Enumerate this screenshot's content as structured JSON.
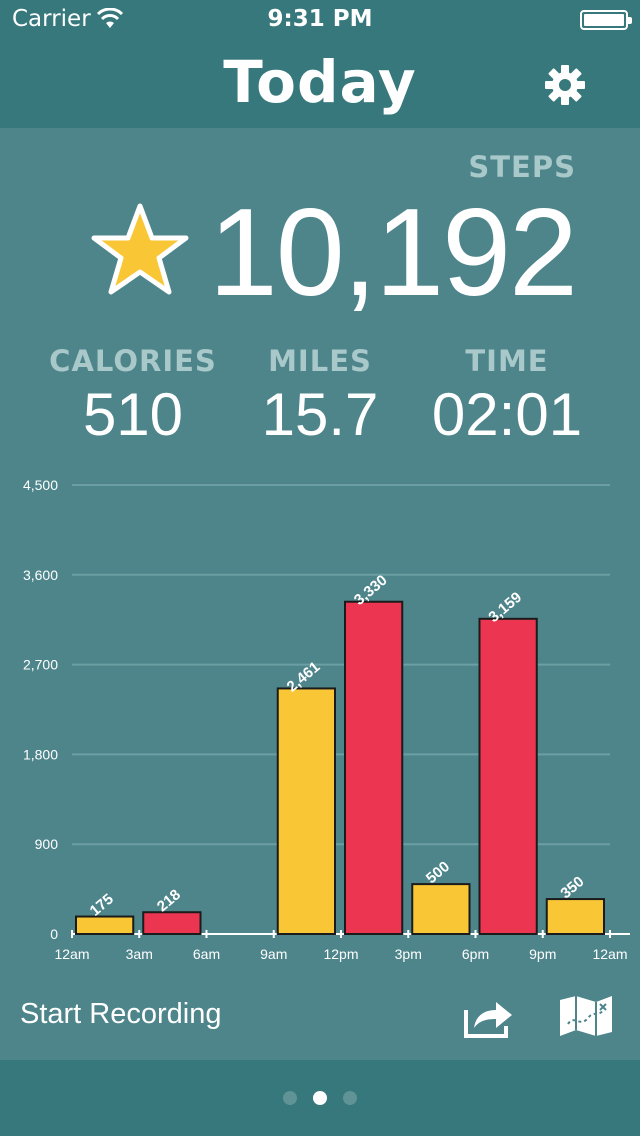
{
  "status_bar": {
    "carrier": "Carrier",
    "time": "9:31 PM"
  },
  "header": {
    "title": "Today"
  },
  "steps": {
    "label": "STEPS",
    "value": "10,192"
  },
  "stats": [
    {
      "label": "CALORIES",
      "value": "510"
    },
    {
      "label": "MILES",
      "value": "15.7"
    },
    {
      "label": "TIME",
      "value": "02:01"
    }
  ],
  "colors": {
    "background": "#4d858b",
    "bar_yellow": "#f9c635",
    "bar_red": "#ec3651",
    "header": "#36787b"
  },
  "chart_data": {
    "type": "bar",
    "categories": [
      "12am",
      "3am",
      "6am",
      "9am",
      "12pm",
      "3pm",
      "6pm",
      "9pm"
    ],
    "values": [
      175,
      218,
      0,
      2461,
      3330,
      500,
      3159,
      350
    ],
    "value_labels": [
      "175",
      "218",
      "",
      "2,461",
      "3,330",
      "500",
      "3,159",
      "350"
    ],
    "bar_colors": [
      "#f9c635",
      "#ec3651",
      "#f9c635",
      "#f9c635",
      "#ec3651",
      "#f9c635",
      "#ec3651",
      "#f9c635"
    ],
    "x_ticks": [
      "12am",
      "3am",
      "6am",
      "9am",
      "12pm",
      "3pm",
      "6pm",
      "9pm",
      "12am"
    ],
    "y_ticks": [
      0,
      900,
      1800,
      2700,
      3600,
      4500
    ],
    "y_tick_labels": [
      "0",
      "900",
      "1,800",
      "2,700",
      "3,600",
      "4,500"
    ],
    "ylim": [
      0,
      4500
    ],
    "grid": true
  },
  "footer": {
    "start_recording": "Start Recording"
  },
  "pager": {
    "count": 3,
    "active": 1
  }
}
